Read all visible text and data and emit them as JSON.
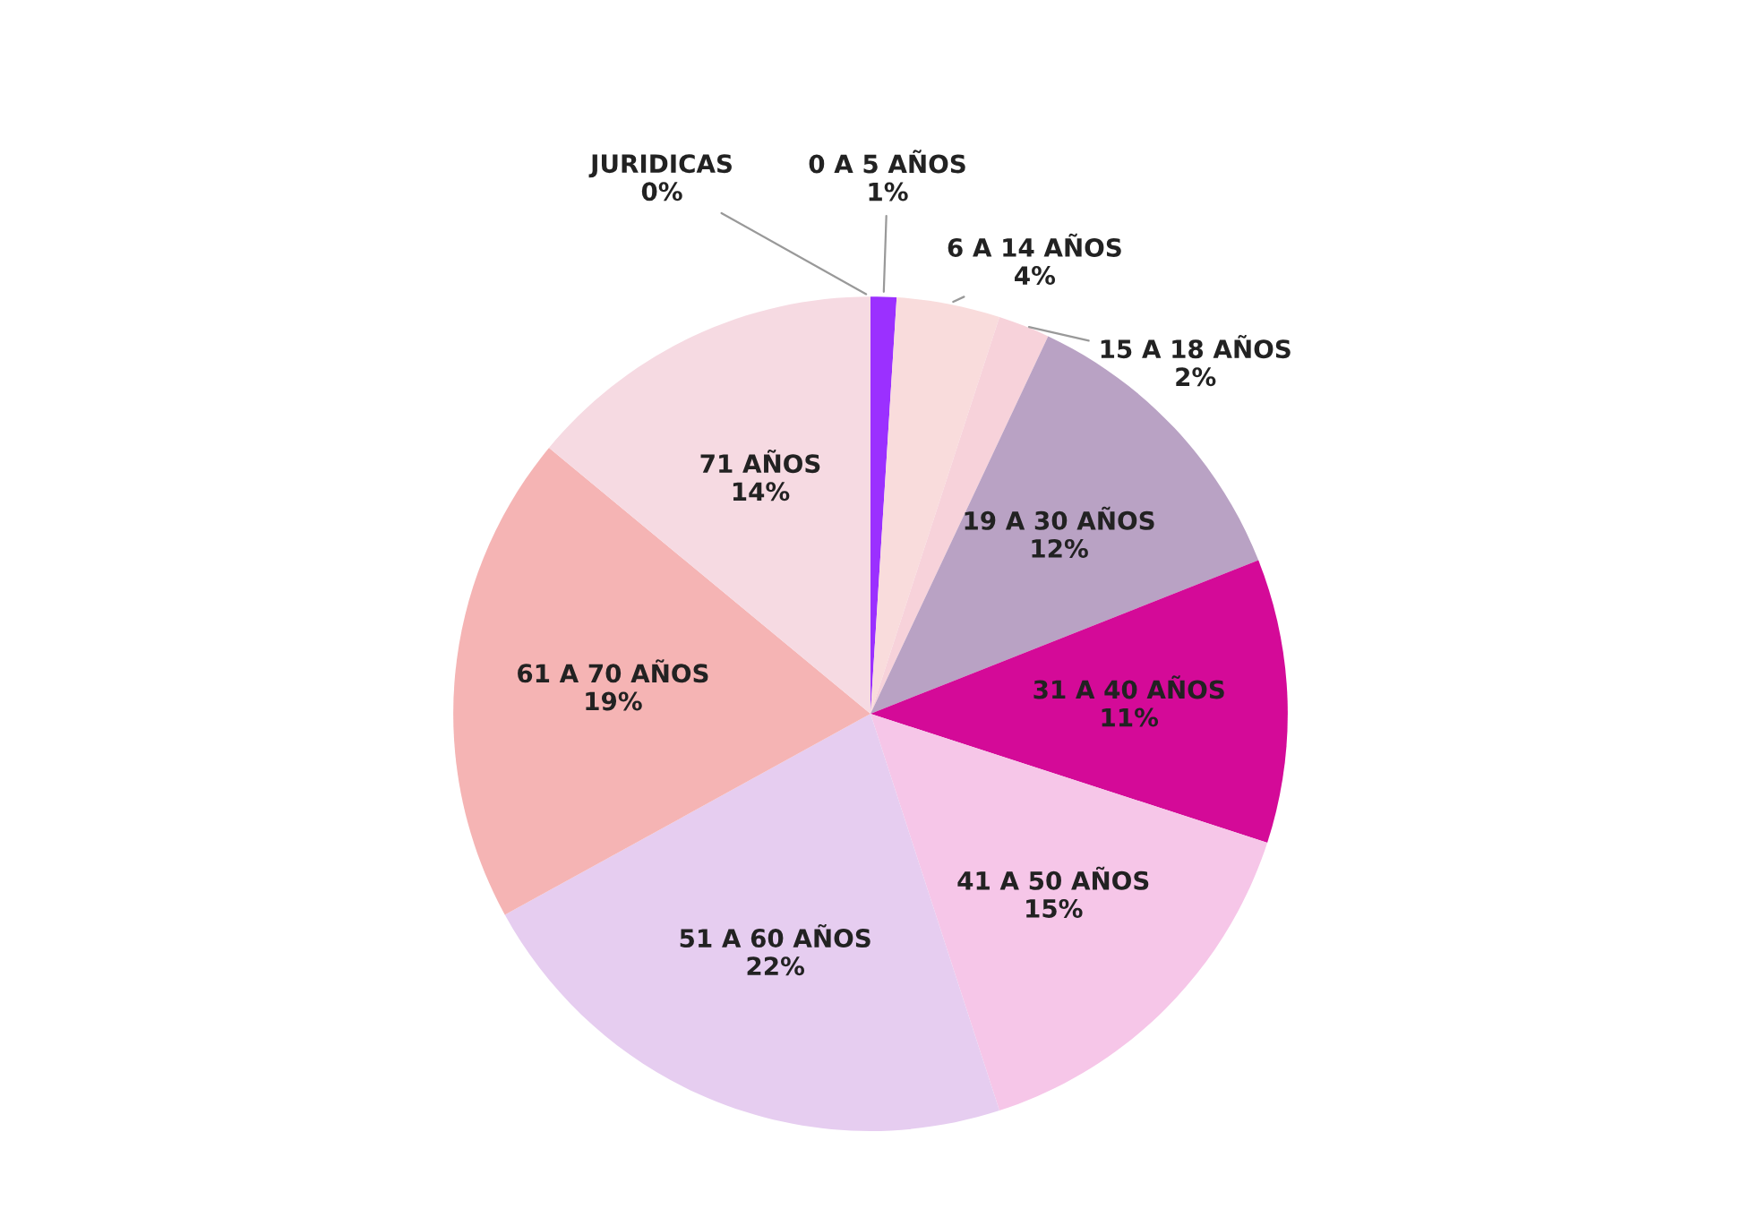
{
  "chart_data": {
    "type": "pie",
    "categories": [
      "0 A 5 AÑOS",
      "6 A 14 AÑOS",
      "15 A 18 AÑOS",
      "19 A 30 AÑOS",
      "31 A 40 AÑOS",
      "41 A 50 AÑOS",
      "51 A 60 AÑOS",
      "61 A 70 AÑOS",
      "71 AÑOS",
      "JURIDICAS"
    ],
    "values": [
      1,
      4,
      2,
      12,
      11,
      15,
      22,
      19,
      14,
      0
    ],
    "value_labels": [
      "1%",
      "4%",
      "2%",
      "12%",
      "11%",
      "15%",
      "22%",
      "19%",
      "14%",
      "0%"
    ],
    "colors": [
      "#9b30ff",
      "#f9dcdc",
      "#f7d2da",
      "#b9a2c4",
      "#d40a98",
      "#f6c6e8",
      "#e6cdf0",
      "#f5b4b4",
      "#f6dae2",
      "#e00000"
    ],
    "legend": false
  }
}
